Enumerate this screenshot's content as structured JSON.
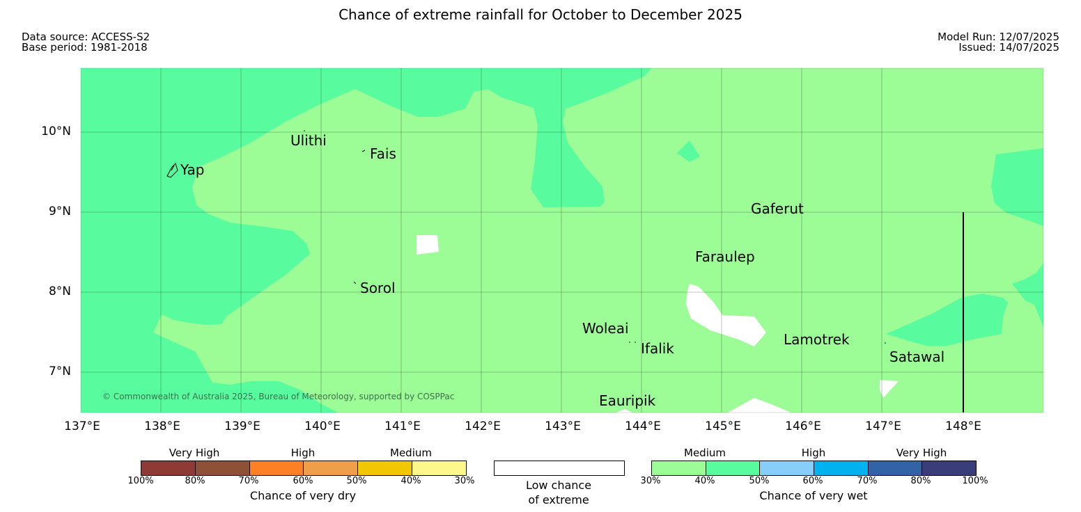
{
  "title": "Chance of extreme rainfall for October to December 2025",
  "meta": {
    "data_source": "Data source: ACCESS-S2",
    "base_period": "Base period: 1981-2018",
    "model_run": "Model Run: 12/07/2025",
    "issued": "Issued: 14/07/2025"
  },
  "map": {
    "lat_labels": [
      "10°N",
      "9°N",
      "8°N",
      "7°N"
    ],
    "lon_labels": [
      "137°E",
      "138°E",
      "139°E",
      "140°E",
      "141°E",
      "142°E",
      "143°E",
      "144°E",
      "145°E",
      "146°E",
      "147°E",
      "148°E"
    ],
    "places": {
      "yap": "Yap",
      "ulithi": "Ulithi",
      "fais": "Fais",
      "gaferut": "Gaferut",
      "faraulep": "Faraulep",
      "sorol": "Sorol",
      "woleai": "Woleai",
      "ifalik": "Ifalik",
      "lamotrek": "Lamotrek",
      "satawal": "Satawal",
      "eauripik": "Eauripik"
    },
    "copyright": "© Commonwealth of Australia 2025, Bureau of Meteorology, supported by COSPPac",
    "colors": {
      "medium_wet": "#9cfc95",
      "high_wet": "#58fc9f",
      "low_chance": "#ffffff"
    }
  },
  "legend": {
    "dry": {
      "categories": [
        "Very High",
        "High",
        "Medium"
      ],
      "ticks": [
        "100%",
        "80%",
        "70%",
        "60%",
        "50%",
        "40%",
        "30%"
      ],
      "colors": [
        "#8e3a35",
        "#8f5038",
        "#fd8124",
        "#ef9e4a",
        "#f1c800",
        "#fdf88c"
      ],
      "title": "Chance of very dry"
    },
    "low": {
      "line1": "Low chance",
      "line2": "of extreme",
      "color": "#ffffff"
    },
    "wet": {
      "categories": [
        "Medium",
        "High",
        "Very High"
      ],
      "ticks": [
        "30%",
        "40%",
        "50%",
        "60%",
        "70%",
        "80%",
        "100%"
      ],
      "colors": [
        "#9cfc95",
        "#58fc9f",
        "#87cefa",
        "#00b3ee",
        "#3163a6",
        "#3b3c7a"
      ],
      "title": "Chance of very wet"
    }
  }
}
